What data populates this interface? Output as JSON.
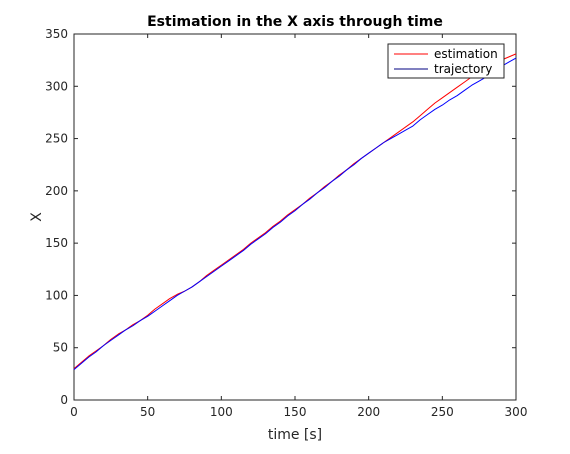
{
  "chart_data": {
    "type": "line",
    "title": "Estimation in the X axis through time",
    "xlabel": "time [s]",
    "ylabel": "X",
    "xlim": [
      0,
      300
    ],
    "ylim": [
      0,
      350
    ],
    "xticks": [
      0,
      50,
      100,
      150,
      200,
      250,
      300
    ],
    "yticks": [
      0,
      50,
      100,
      150,
      200,
      250,
      300,
      350
    ],
    "grid": false,
    "legend_position": "top-right",
    "series": [
      {
        "name": "estimation",
        "color": "#ff0000",
        "x": [
          0,
          5,
          10,
          15,
          20,
          25,
          30,
          35,
          40,
          45,
          50,
          55,
          60,
          65,
          70,
          75,
          80,
          85,
          90,
          95,
          100,
          105,
          110,
          115,
          120,
          125,
          130,
          135,
          140,
          145,
          150,
          155,
          160,
          165,
          170,
          175,
          180,
          185,
          190,
          195,
          200,
          205,
          210,
          215,
          220,
          225,
          230,
          235,
          240,
          245,
          250,
          255,
          260,
          265,
          270,
          275,
          280,
          285,
          290,
          295,
          300
        ],
        "y": [
          30,
          36,
          42,
          47,
          52,
          58,
          63,
          67,
          72,
          76,
          81,
          87,
          92,
          97,
          101,
          104,
          108,
          113,
          119,
          124,
          129,
          134,
          139,
          144,
          150,
          155,
          160,
          166,
          171,
          177,
          182,
          187,
          193,
          198,
          204,
          209,
          215,
          220,
          226,
          231,
          236,
          241,
          246,
          251,
          256,
          261,
          266,
          272,
          278,
          284,
          289,
          294,
          299,
          304,
          309,
          313,
          318,
          322,
          325,
          328,
          331
        ]
      },
      {
        "name": "trajectory",
        "color": "#0000ff",
        "x": [
          0,
          5,
          10,
          15,
          20,
          25,
          30,
          35,
          40,
          45,
          50,
          55,
          60,
          65,
          70,
          75,
          80,
          85,
          90,
          95,
          100,
          105,
          110,
          115,
          120,
          125,
          130,
          135,
          140,
          145,
          150,
          155,
          160,
          165,
          170,
          175,
          180,
          185,
          190,
          195,
          200,
          205,
          210,
          215,
          220,
          225,
          230,
          235,
          240,
          245,
          250,
          255,
          260,
          265,
          270,
          275,
          280,
          285,
          290,
          295,
          300
        ],
        "y": [
          29,
          35,
          41,
          46,
          52,
          57,
          62,
          67,
          71,
          76,
          80,
          85,
          90,
          95,
          100,
          104,
          108,
          113,
          118,
          123,
          128,
          133,
          138,
          143,
          149,
          154,
          159,
          165,
          170,
          176,
          181,
          187,
          192,
          198,
          203,
          209,
          214,
          220,
          225,
          231,
          236,
          241,
          246,
          250,
          254,
          258,
          262,
          268,
          273,
          278,
          282,
          287,
          291,
          296,
          301,
          305,
          309,
          314,
          319,
          323,
          327
        ]
      }
    ]
  }
}
